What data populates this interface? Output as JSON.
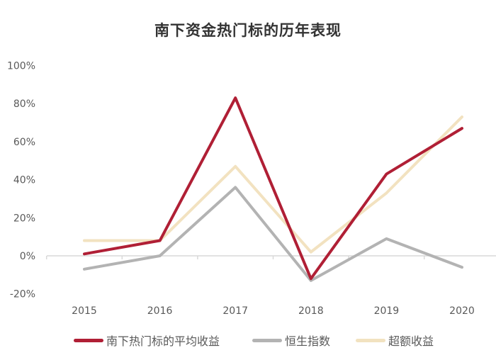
{
  "chart_data": {
    "type": "line",
    "title": "南下资金热门标的历年表现",
    "xlabel": "",
    "ylabel": "",
    "categories": [
      "2015",
      "2016",
      "2017",
      "2018",
      "2019",
      "2020"
    ],
    "ylim": [
      -0.2,
      1.0
    ],
    "yticks": [
      "100%",
      "80%",
      "60%",
      "40%",
      "20%",
      "0%",
      "-20%"
    ],
    "ytick_values": [
      1.0,
      0.8,
      0.6,
      0.4,
      0.2,
      0.0,
      -0.2
    ],
    "grid": false,
    "legend_position": "bottom",
    "series": [
      {
        "name": "南下热门标的平均收益",
        "color": "#B01F35",
        "values": [
          0.01,
          0.08,
          0.83,
          -0.12,
          0.43,
          0.67
        ]
      },
      {
        "name": "恒生指数",
        "color": "#B3B3B3",
        "values": [
          -0.07,
          0.0,
          0.36,
          -0.13,
          0.09,
          -0.06
        ]
      },
      {
        "name": "超额收益",
        "color": "#F2E2C0",
        "values": [
          0.08,
          0.08,
          0.47,
          0.02,
          0.33,
          0.73
        ]
      }
    ]
  },
  "header": {
    "title": "南下资金热门标的历年表现"
  },
  "legend": {
    "items": [
      {
        "label": "南下热门标的平均收益",
        "color": "#B01F35"
      },
      {
        "label": "恒生指数",
        "color": "#B3B3B3"
      },
      {
        "label": "超额收益",
        "color": "#F2E2C0"
      }
    ]
  }
}
